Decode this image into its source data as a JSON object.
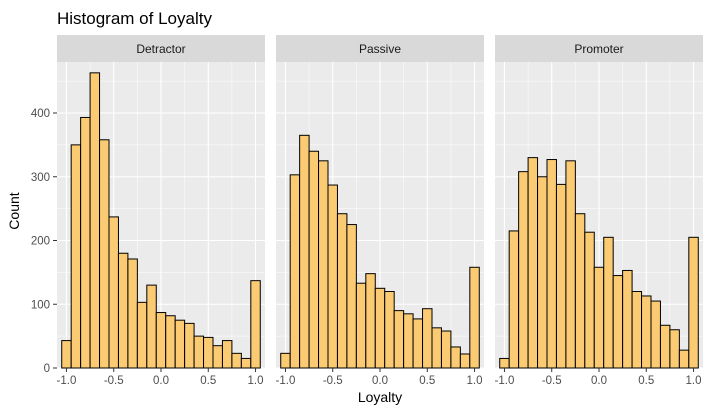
{
  "chart_data": {
    "type": "bar",
    "title": "Histogram of Loyalty",
    "xlabel": "Loyalty",
    "ylabel": "Count",
    "xlim": [
      -1.1,
      1.1
    ],
    "ylim": [
      0,
      480
    ],
    "x_ticks": [
      -1.0,
      -0.5,
      0.0,
      0.5,
      1.0
    ],
    "x_tick_labels": [
      "-1.0",
      "-0.5",
      "0.0",
      "0.5",
      "1.0"
    ],
    "y_ticks": [
      0,
      100,
      200,
      300,
      400
    ],
    "y_tick_labels": [
      "0",
      "100",
      "200",
      "300",
      "400"
    ],
    "bin_width": 0.1,
    "bin_centers": [
      -1.0,
      -0.9,
      -0.8,
      -0.7,
      -0.6,
      -0.5,
      -0.4,
      -0.3,
      -0.2,
      -0.1,
      0.0,
      0.1,
      0.2,
      0.3,
      0.4,
      0.5,
      0.6,
      0.7,
      0.8,
      0.9,
      1.0
    ],
    "grid": true,
    "bar_fill": "#FBCB73",
    "bar_outline": "#000000",
    "panel_background": "#EBEBEB",
    "strip_background": "#D9D9D9",
    "series": [
      {
        "name": "Detractor",
        "values": [
          43,
          350,
          393,
          463,
          358,
          237,
          180,
          171,
          103,
          130,
          87,
          82,
          75,
          70,
          50,
          48,
          35,
          43,
          23,
          15,
          137
        ]
      },
      {
        "name": "Passive",
        "values": [
          23,
          303,
          365,
          340,
          325,
          287,
          242,
          225,
          133,
          148,
          125,
          120,
          90,
          85,
          77,
          93,
          63,
          58,
          33,
          22,
          158
        ]
      },
      {
        "name": "Promoter",
        "values": [
          15,
          215,
          308,
          330,
          300,
          327,
          288,
          325,
          242,
          213,
          158,
          205,
          145,
          153,
          120,
          113,
          105,
          67,
          60,
          28,
          205
        ]
      }
    ]
  }
}
